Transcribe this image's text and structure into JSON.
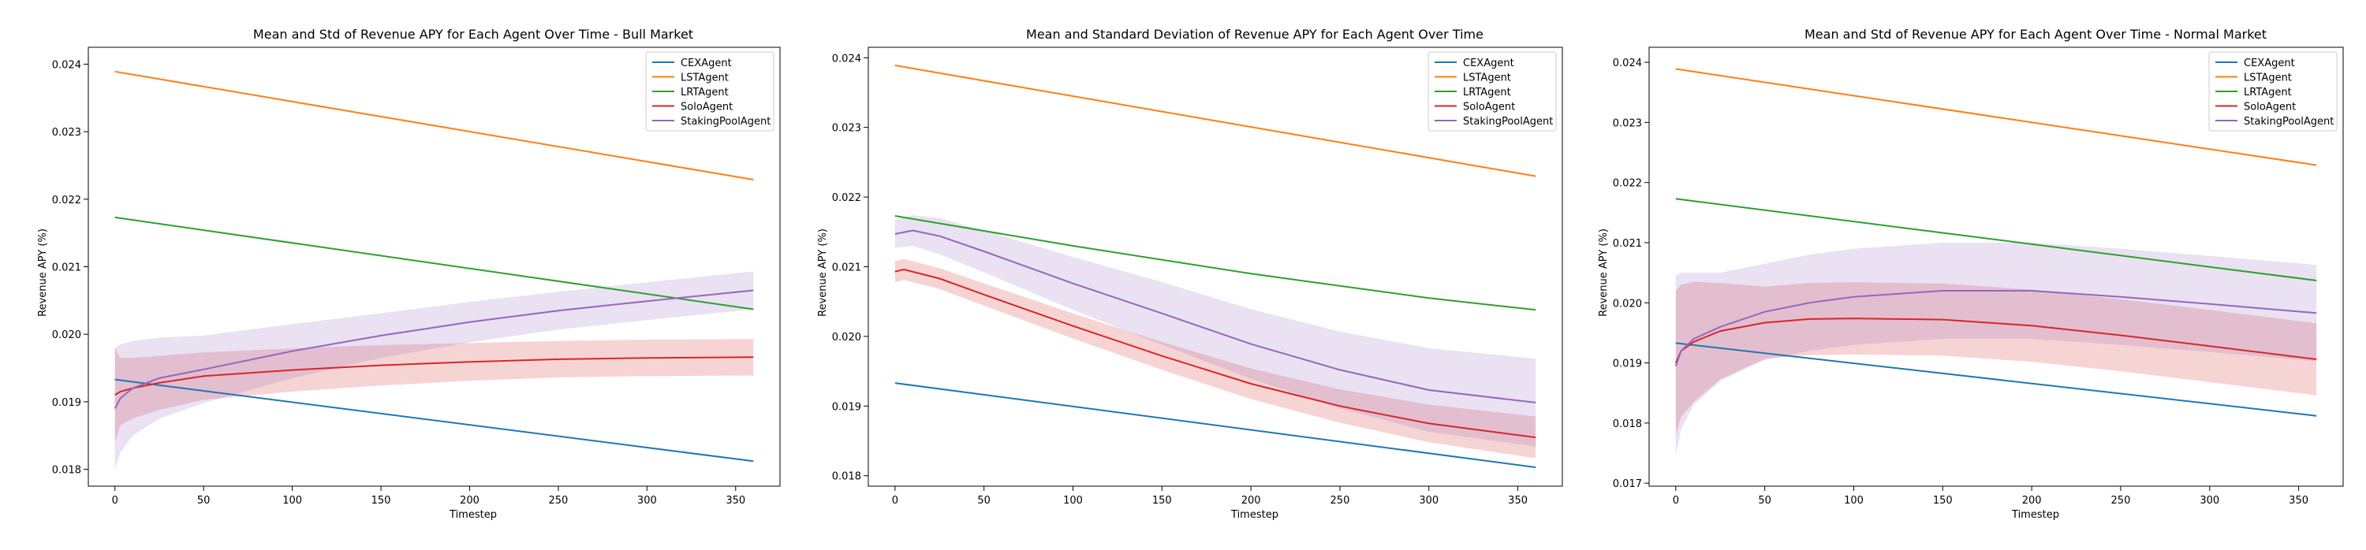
{
  "colors": {
    "CEXAgent": "#1f77b4",
    "LSTAgent": "#ff7f0e",
    "LRTAgent": "#2ca02c",
    "SoloAgent": "#d62728",
    "StakingPoolAgent": "#9467bd"
  },
  "chart_data": [
    {
      "type": "line",
      "title": "Mean and Std of Revenue APY for Each Agent Over Time - Bull Market",
      "xlabel": "Timestep",
      "ylabel": "Revenue APY (%)",
      "xlim": [
        -15,
        375
      ],
      "ylim": [
        0.01775,
        0.02425
      ],
      "xticks": [
        0,
        50,
        100,
        150,
        200,
        250,
        300,
        350
      ],
      "yticks": [
        0.018,
        0.019,
        0.02,
        0.021,
        0.022,
        0.023,
        0.024
      ],
      "grid": false,
      "legend": "top-right",
      "series": [
        {
          "name": "CEXAgent",
          "x": [
            0,
            360
          ],
          "mean": [
            0.01933,
            0.01812
          ],
          "std": [
            0,
            0
          ]
        },
        {
          "name": "LSTAgent",
          "x": [
            0,
            360
          ],
          "mean": [
            0.02389,
            0.02229
          ],
          "std": [
            0,
            0
          ]
        },
        {
          "name": "LRTAgent",
          "x": [
            0,
            360
          ],
          "mean": [
            0.02173,
            0.02037
          ],
          "std": [
            0,
            0
          ]
        },
        {
          "name": "SoloAgent",
          "x": [
            0,
            3,
            10,
            25,
            50,
            100,
            150,
            200,
            250,
            300,
            360
          ],
          "mean": [
            0.0191,
            0.01915,
            0.0192,
            0.01928,
            0.01938,
            0.01947,
            0.01954,
            0.01959,
            0.01963,
            0.01965,
            0.01966
          ],
          "std": [
            0.0007,
            0.0005,
            0.00045,
            0.0004,
            0.00035,
            0.00032,
            0.0003,
            0.00028,
            0.00027,
            0.00027,
            0.00027
          ]
        },
        {
          "name": "StakingPoolAgent",
          "x": [
            0,
            3,
            10,
            25,
            50,
            100,
            150,
            200,
            250,
            300,
            360
          ],
          "mean": [
            0.0189,
            0.01905,
            0.0192,
            0.01935,
            0.01948,
            0.01975,
            0.01998,
            0.02018,
            0.02035,
            0.02049,
            0.02065
          ],
          "std": [
            0.0009,
            0.0008,
            0.0007,
            0.0006,
            0.0005,
            0.0004,
            0.00033,
            0.0003,
            0.00028,
            0.00028,
            0.00028
          ]
        }
      ]
    },
    {
      "type": "line",
      "title": "Mean and Standard Deviation of Revenue APY for Each Agent Over Time",
      "xlabel": "Timestep",
      "ylabel": "Revenue APY (%)",
      "xlim": [
        -15,
        375
      ],
      "ylim": [
        0.01785,
        0.02415
      ],
      "xticks": [
        0,
        50,
        100,
        150,
        200,
        250,
        300,
        350
      ],
      "yticks": [
        0.018,
        0.019,
        0.02,
        0.021,
        0.022,
        0.023,
        0.024
      ],
      "grid": false,
      "legend": "top-right",
      "series": [
        {
          "name": "CEXAgent",
          "x": [
            0,
            360
          ],
          "mean": [
            0.01933,
            0.01812
          ],
          "std": [
            0,
            0
          ]
        },
        {
          "name": "LSTAgent",
          "x": [
            0,
            360
          ],
          "mean": [
            0.02389,
            0.0223
          ],
          "std": [
            0,
            0
          ]
        },
        {
          "name": "LRTAgent",
          "x": [
            0,
            100,
            200,
            300,
            360
          ],
          "mean": [
            0.02173,
            0.0213,
            0.0209,
            0.02055,
            0.02038
          ],
          "std": [
            0,
            0,
            0,
            0,
            0
          ]
        },
        {
          "name": "SoloAgent",
          "x": [
            0,
            5,
            25,
            50,
            100,
            150,
            200,
            250,
            300,
            360
          ],
          "mean": [
            0.02093,
            0.02096,
            0.02083,
            0.0206,
            0.02015,
            0.01972,
            0.01932,
            0.019,
            0.01875,
            0.01855
          ],
          "std": [
            0.00015,
            0.00015,
            0.00015,
            0.00016,
            0.00018,
            0.0002,
            0.00022,
            0.00024,
            0.00027,
            0.0003
          ]
        },
        {
          "name": "StakingPoolAgent",
          "x": [
            0,
            10,
            25,
            50,
            100,
            150,
            200,
            250,
            300,
            360
          ],
          "mean": [
            0.02147,
            0.02152,
            0.02144,
            0.02122,
            0.02076,
            0.02033,
            0.01989,
            0.01952,
            0.01923,
            0.01905
          ],
          "std": [
            0.0002,
            0.00022,
            0.00026,
            0.0003,
            0.00038,
            0.00045,
            0.0005,
            0.00055,
            0.0006,
            0.00063
          ]
        }
      ]
    },
    {
      "type": "line",
      "title": "Mean and Std of Revenue APY for Each Agent Over Time - Normal Market",
      "xlabel": "Timestep",
      "ylabel": "Revenue APY (%)",
      "xlim": [
        -15,
        375
      ],
      "ylim": [
        0.01695,
        0.02425
      ],
      "xticks": [
        0,
        50,
        100,
        150,
        200,
        250,
        300,
        350
      ],
      "yticks": [
        0.017,
        0.018,
        0.019,
        0.02,
        0.021,
        0.022,
        0.023,
        0.024
      ],
      "grid": false,
      "legend": "top-right",
      "series": [
        {
          "name": "CEXAgent",
          "x": [
            0,
            360
          ],
          "mean": [
            0.01933,
            0.01812
          ],
          "std": [
            0,
            0
          ]
        },
        {
          "name": "LSTAgent",
          "x": [
            0,
            360
          ],
          "mean": [
            0.02389,
            0.02229
          ],
          "std": [
            0,
            0
          ]
        },
        {
          "name": "LRTAgent",
          "x": [
            0,
            360
          ],
          "mean": [
            0.02173,
            0.02037
          ],
          "std": [
            0,
            0
          ]
        },
        {
          "name": "SoloAgent",
          "x": [
            0,
            3,
            10,
            25,
            50,
            75,
            100,
            150,
            200,
            250,
            300,
            360
          ],
          "mean": [
            0.019,
            0.0192,
            0.01935,
            0.01953,
            0.01967,
            0.01973,
            0.01974,
            0.01972,
            0.01962,
            0.01946,
            0.01928,
            0.01906
          ],
          "std": [
            0.0012,
            0.0011,
            0.001,
            0.0008,
            0.0006,
            0.0006,
            0.0006,
            0.0006,
            0.0006,
            0.0006,
            0.0006,
            0.0006
          ]
        },
        {
          "name": "StakingPoolAgent",
          "x": [
            0,
            3,
            10,
            25,
            50,
            75,
            100,
            150,
            200,
            250,
            300,
            360
          ],
          "mean": [
            0.01895,
            0.0192,
            0.0194,
            0.0196,
            0.01985,
            0.02,
            0.0201,
            0.0202,
            0.0202,
            0.0201,
            0.01998,
            0.01983
          ],
          "std": [
            0.0015,
            0.0013,
            0.0011,
            0.0009,
            0.0008,
            0.0008,
            0.0008,
            0.0008,
            0.0008,
            0.0008,
            0.0008,
            0.0008
          ]
        }
      ]
    }
  ]
}
